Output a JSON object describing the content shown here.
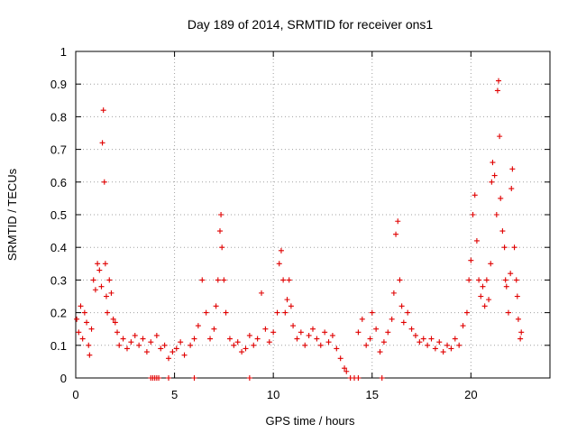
{
  "chart_data": {
    "type": "scatter",
    "title": "Day 189 of 2014, SRMTID for receiver ons1",
    "xlabel": "GPS time / hours",
    "ylabel": "SRMTID / TECUs",
    "xlim": [
      0,
      24
    ],
    "ylim": [
      0,
      1
    ],
    "xticks": [
      0,
      5,
      10,
      15,
      20
    ],
    "yticks": [
      0,
      0.1,
      0.2,
      0.3,
      0.4,
      0.5,
      0.6,
      0.7,
      0.8,
      0.9,
      1
    ],
    "grid": true,
    "marker": "+",
    "color": "#e00000",
    "series": [
      {
        "name": "SRMTID",
        "points": [
          [
            0.05,
            0.18
          ],
          [
            0.15,
            0.14
          ],
          [
            0.25,
            0.22
          ],
          [
            0.35,
            0.12
          ],
          [
            0.45,
            0.2
          ],
          [
            0.55,
            0.17
          ],
          [
            0.65,
            0.1
          ],
          [
            0.7,
            0.07
          ],
          [
            0.8,
            0.15
          ],
          [
            0.9,
            0.3
          ],
          [
            1.0,
            0.27
          ],
          [
            1.1,
            0.35
          ],
          [
            1.2,
            0.33
          ],
          [
            1.3,
            0.28
          ],
          [
            1.35,
            0.72
          ],
          [
            1.4,
            0.82
          ],
          [
            1.45,
            0.6
          ],
          [
            1.5,
            0.35
          ],
          [
            1.55,
            0.25
          ],
          [
            1.6,
            0.2
          ],
          [
            1.7,
            0.3
          ],
          [
            1.8,
            0.26
          ],
          [
            1.9,
            0.18
          ],
          [
            2.0,
            0.17
          ],
          [
            2.1,
            0.14
          ],
          [
            2.2,
            0.1
          ],
          [
            2.4,
            0.12
          ],
          [
            2.6,
            0.09
          ],
          [
            2.8,
            0.11
          ],
          [
            3.0,
            0.13
          ],
          [
            3.2,
            0.1
          ],
          [
            3.4,
            0.12
          ],
          [
            3.6,
            0.08
          ],
          [
            3.8,
            0.11
          ],
          [
            4.1,
            0.13
          ],
          [
            4.3,
            0.09
          ],
          [
            4.5,
            0.1
          ],
          [
            4.7,
            0.06
          ],
          [
            4.9,
            0.08
          ],
          [
            5.1,
            0.09
          ],
          [
            5.3,
            0.11
          ],
          [
            5.5,
            0.07
          ],
          [
            5.8,
            0.1
          ],
          [
            6.0,
            0.12
          ],
          [
            6.2,
            0.16
          ],
          [
            6.4,
            0.3
          ],
          [
            6.6,
            0.2
          ],
          [
            6.8,
            0.12
          ],
          [
            7.0,
            0.15
          ],
          [
            7.1,
            0.22
          ],
          [
            7.2,
            0.3
          ],
          [
            7.3,
            0.45
          ],
          [
            7.35,
            0.5
          ],
          [
            7.4,
            0.4
          ],
          [
            7.5,
            0.3
          ],
          [
            7.6,
            0.2
          ],
          [
            7.8,
            0.12
          ],
          [
            8.0,
            0.1
          ],
          [
            8.2,
            0.11
          ],
          [
            8.4,
            0.08
          ],
          [
            8.6,
            0.09
          ],
          [
            8.8,
            0.13
          ],
          [
            9.0,
            0.1
          ],
          [
            9.2,
            0.12
          ],
          [
            9.4,
            0.26
          ],
          [
            9.6,
            0.15
          ],
          [
            9.8,
            0.11
          ],
          [
            10.0,
            0.14
          ],
          [
            10.2,
            0.2
          ],
          [
            10.3,
            0.35
          ],
          [
            10.4,
            0.39
          ],
          [
            10.5,
            0.3
          ],
          [
            10.6,
            0.2
          ],
          [
            10.7,
            0.24
          ],
          [
            10.8,
            0.3
          ],
          [
            10.9,
            0.22
          ],
          [
            11.0,
            0.16
          ],
          [
            11.2,
            0.12
          ],
          [
            11.4,
            0.14
          ],
          [
            11.6,
            0.1
          ],
          [
            11.8,
            0.13
          ],
          [
            12.0,
            0.15
          ],
          [
            12.2,
            0.12
          ],
          [
            12.4,
            0.1
          ],
          [
            12.6,
            0.14
          ],
          [
            12.8,
            0.11
          ],
          [
            13.0,
            0.13
          ],
          [
            13.2,
            0.09
          ],
          [
            13.4,
            0.06
          ],
          [
            13.6,
            0.03
          ],
          [
            13.7,
            0.02
          ],
          [
            14.3,
            0.14
          ],
          [
            14.5,
            0.18
          ],
          [
            14.7,
            0.1
          ],
          [
            14.9,
            0.12
          ],
          [
            15.0,
            0.2
          ],
          [
            15.2,
            0.15
          ],
          [
            15.4,
            0.08
          ],
          [
            15.6,
            0.11
          ],
          [
            15.8,
            0.14
          ],
          [
            16.0,
            0.18
          ],
          [
            16.1,
            0.26
          ],
          [
            16.2,
            0.44
          ],
          [
            16.3,
            0.48
          ],
          [
            16.4,
            0.3
          ],
          [
            16.5,
            0.22
          ],
          [
            16.6,
            0.17
          ],
          [
            16.8,
            0.2
          ],
          [
            17.0,
            0.15
          ],
          [
            17.2,
            0.13
          ],
          [
            17.4,
            0.11
          ],
          [
            17.6,
            0.12
          ],
          [
            17.8,
            0.1
          ],
          [
            18.0,
            0.12
          ],
          [
            18.2,
            0.09
          ],
          [
            18.4,
            0.11
          ],
          [
            18.6,
            0.08
          ],
          [
            18.8,
            0.1
          ],
          [
            19.0,
            0.09
          ],
          [
            19.2,
            0.12
          ],
          [
            19.4,
            0.1
          ],
          [
            19.6,
            0.16
          ],
          [
            19.8,
            0.2
          ],
          [
            19.9,
            0.3
          ],
          [
            20.0,
            0.36
          ],
          [
            20.1,
            0.5
          ],
          [
            20.2,
            0.56
          ],
          [
            20.3,
            0.42
          ],
          [
            20.4,
            0.3
          ],
          [
            20.5,
            0.25
          ],
          [
            20.6,
            0.28
          ],
          [
            20.7,
            0.22
          ],
          [
            20.8,
            0.3
          ],
          [
            20.9,
            0.24
          ],
          [
            21.0,
            0.35
          ],
          [
            21.05,
            0.6
          ],
          [
            21.1,
            0.66
          ],
          [
            21.2,
            0.62
          ],
          [
            21.3,
            0.5
          ],
          [
            21.35,
            0.88
          ],
          [
            21.4,
            0.91
          ],
          [
            21.45,
            0.74
          ],
          [
            21.5,
            0.55
          ],
          [
            21.6,
            0.45
          ],
          [
            21.7,
            0.4
          ],
          [
            21.75,
            0.3
          ],
          [
            21.8,
            0.28
          ],
          [
            21.9,
            0.2
          ],
          [
            22.0,
            0.32
          ],
          [
            22.05,
            0.58
          ],
          [
            22.1,
            0.64
          ],
          [
            22.2,
            0.4
          ],
          [
            22.3,
            0.3
          ],
          [
            22.35,
            0.25
          ],
          [
            22.4,
            0.18
          ],
          [
            22.5,
            0.12
          ],
          [
            22.55,
            0.14
          ],
          [
            3.8,
            0
          ],
          [
            3.9,
            0
          ],
          [
            4.0,
            0
          ],
          [
            4.1,
            0
          ],
          [
            4.2,
            0
          ],
          [
            4.7,
            0
          ],
          [
            6.0,
            0
          ],
          [
            8.8,
            0
          ],
          [
            13.9,
            0
          ],
          [
            14.1,
            0
          ],
          [
            14.3,
            0
          ],
          [
            15.5,
            0
          ]
        ]
      }
    ]
  }
}
